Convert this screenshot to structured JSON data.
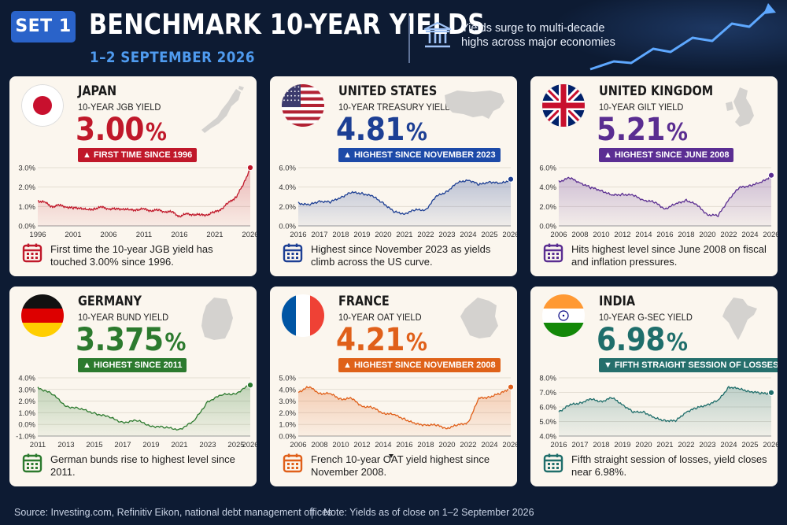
{
  "header": {
    "set_label": "SET 1",
    "title": "BENCHMARK 10-YEAR YIELDS",
    "date": "1–2 SEPTEMBER 2026",
    "tagline": "Yields surge to multi-decade highs across major economies"
  },
  "footer": {
    "source": "Source: Investing.com, Refinitiv Eikon, national debt management offices",
    "note": "Note: Yields as of close on 1–2 September 2026"
  },
  "cards": [
    {
      "country": "JAPAN",
      "metric": "10-YEAR JGB YIELD",
      "value": "3.00",
      "unit": "%",
      "badge": "▲ FIRST TIME SINCE 1996",
      "accent": "#c0182a",
      "badge_color": "#c0182a",
      "note": "First time the 10-year JGB yield has touched 3.00% since 1996."
    },
    {
      "country": "UNITED STATES",
      "metric": "10-YEAR TREASURY YIELD",
      "value": "4.81",
      "unit": "%",
      "badge": "▲ HIGHEST SINCE NOVEMBER 2023",
      "accent": "#1d3f94",
      "badge_color": "#1d4aa8",
      "note": "Highest since November 2023 as yields climb across the US curve."
    },
    {
      "country": "UNITED KINGDOM",
      "metric": "10-YEAR GILT YIELD",
      "value": "5.21",
      "unit": "%",
      "badge": "▲ HIGHEST SINCE JUNE 2008",
      "accent": "#5a2d91",
      "badge_color": "#5b2e93",
      "note": "Hits highest level since June 2008 on fiscal and inflation pressures."
    },
    {
      "country": "GERMANY",
      "metric": "10-YEAR BUND YIELD",
      "value": "3.375",
      "unit": "%",
      "badge": "▲ HIGHEST SINCE 2011",
      "accent": "#2c7a2e",
      "badge_color": "#2c7a2e",
      "note": "German bunds rise to highest level since 2011."
    },
    {
      "country": "FRANCE",
      "metric": "10-YEAR OAT YIELD",
      "value": "4.21",
      "unit": "%",
      "badge": "▲ HIGHEST SINCE NOVEMBER 2008",
      "accent": "#e0601a",
      "badge_color": "#df6219",
      "note": "French 10-year OAT yield highest since November 2008."
    },
    {
      "country": "INDIA",
      "metric": "10-YEAR G-SEC YIELD",
      "value": "6.98",
      "unit": "%",
      "badge": "▼ FIFTH STRAIGHT SESSION OF LOSSES",
      "accent": "#1f6e6b",
      "badge_color": "#256f6c",
      "note": "Fifth straight session of losses, yield closes near 6.98%."
    }
  ],
  "chart_data": [
    {
      "type": "area",
      "series_name": "",
      "color": "#c0182a",
      "ylim": [
        0,
        3
      ],
      "yticks": [
        "0.0%",
        "1.0%",
        "2.0%",
        "3.0%"
      ],
      "ytick_values": [
        0,
        1,
        2,
        3
      ],
      "xlim": [
        1996,
        2026
      ],
      "xticks": [
        "1996",
        "2001",
        "2006",
        "2011",
        "2016",
        "2021",
        "2026"
      ],
      "xtick_values": [
        1996,
        2001,
        2006,
        2011,
        2016,
        2021,
        2026
      ],
      "x": [
        1996,
        1997,
        1998,
        1999,
        2000,
        2001,
        2002,
        2003,
        2004,
        2005,
        2006,
        2007,
        2008,
        2009,
        2010,
        2011,
        2012,
        2013,
        2014,
        2015,
        2016,
        2017,
        2018,
        2019,
        2020,
        2021,
        2022,
        2023,
        2024,
        2025,
        2026
      ],
      "y": [
        1.3,
        1.2,
        1.0,
        1.05,
        1.0,
        0.9,
        0.95,
        0.8,
        0.9,
        0.95,
        0.9,
        0.85,
        0.9,
        0.8,
        0.85,
        0.85,
        0.8,
        0.8,
        0.75,
        0.7,
        0.5,
        0.6,
        0.6,
        0.55,
        0.6,
        0.7,
        0.9,
        1.2,
        1.5,
        2.1,
        3.0
      ]
    },
    {
      "type": "area",
      "series_name": "",
      "color": "#1d3f94",
      "ylim": [
        0,
        6
      ],
      "yticks": [
        "0.0%",
        "2.0%",
        "4.0%",
        "6.0%"
      ],
      "ytick_values": [
        0,
        2,
        4,
        6
      ],
      "xlim": [
        2016,
        2026
      ],
      "xticks": [
        "2016",
        "2017",
        "2018",
        "2019",
        "2020",
        "2021",
        "2022",
        "2023",
        "2024",
        "2025",
        "2026"
      ],
      "xtick_values": [
        2016,
        2017,
        2018,
        2019,
        2020,
        2021,
        2022,
        2023,
        2024,
        2025,
        2026
      ],
      "x": [
        2016,
        2016.5,
        2017,
        2017.5,
        2018,
        2018.5,
        2019,
        2019.5,
        2020,
        2020.5,
        2021,
        2021.5,
        2022,
        2022.5,
        2023,
        2023.5,
        2024,
        2024.5,
        2025,
        2025.5,
        2026
      ],
      "y": [
        2.4,
        2.1,
        2.6,
        2.4,
        3.0,
        3.4,
        3.4,
        3.0,
        2.4,
        1.4,
        1.3,
        1.6,
        1.7,
        3.0,
        3.6,
        4.4,
        4.8,
        4.2,
        4.6,
        4.3,
        4.81
      ]
    },
    {
      "type": "area",
      "series_name": "",
      "color": "#5a2d91",
      "ylim": [
        0,
        6
      ],
      "yticks": [
        "0.0%",
        "2.0%",
        "4.0%",
        "6.0%"
      ],
      "ytick_values": [
        0,
        2,
        4,
        6
      ],
      "xlim": [
        2006,
        2026
      ],
      "xticks": [
        "2006",
        "2008",
        "2010",
        "2012",
        "2014",
        "2016",
        "2018",
        "2020",
        "2022",
        "2024",
        "2026"
      ],
      "xtick_values": [
        2006,
        2008,
        2010,
        2012,
        2014,
        2016,
        2018,
        2020,
        2022,
        2024,
        2026
      ],
      "x": [
        2006,
        2007,
        2008,
        2009,
        2010,
        2011,
        2012,
        2013,
        2014,
        2015,
        2016,
        2017,
        2018,
        2019,
        2020,
        2021,
        2022,
        2023,
        2024,
        2025,
        2026
      ],
      "y": [
        4.6,
        4.9,
        4.5,
        3.9,
        3.7,
        3.1,
        3.3,
        3.1,
        2.7,
        2.4,
        1.8,
        2.2,
        2.7,
        2.1,
        1.2,
        1.0,
        2.8,
        3.9,
        4.2,
        4.4,
        5.21
      ]
    },
    {
      "type": "area",
      "series_name": "",
      "color": "#2c7a2e",
      "ylim": [
        -1,
        4
      ],
      "yticks": [
        "-1.0%",
        "0.0%",
        "1.0%",
        "2.0%",
        "3.0%",
        "4.0%"
      ],
      "ytick_values": [
        -1,
        0,
        1,
        2,
        3,
        4
      ],
      "xlim": [
        2011,
        2026
      ],
      "xticks": [
        "2011",
        "2013",
        "2015",
        "2017",
        "2019",
        "2021",
        "2023",
        "2025",
        "2026"
      ],
      "xtick_values": [
        2011,
        2013,
        2015,
        2017,
        2019,
        2021,
        2023,
        2025,
        2026
      ],
      "x": [
        2011,
        2012,
        2013,
        2014,
        2015,
        2016,
        2017,
        2018,
        2019,
        2020,
        2021,
        2022,
        2023,
        2024,
        2025,
        2026
      ],
      "y": [
        3.2,
        2.6,
        1.6,
        1.3,
        1.0,
        0.6,
        0.2,
        0.3,
        -0.1,
        -0.3,
        -0.4,
        0.2,
        2.0,
        2.5,
        2.7,
        3.375
      ]
    },
    {
      "type": "area",
      "series_name": "",
      "color": "#e0601a",
      "ylim": [
        0,
        5
      ],
      "yticks": [
        "0.0%",
        "1.0%",
        "2.0%",
        "3.0%",
        "4.0%",
        "5.0%"
      ],
      "ytick_values": [
        0,
        1,
        2,
        3,
        4,
        5
      ],
      "xlim": [
        2006,
        2026
      ],
      "xticks": [
        "2006",
        "2008",
        "2010",
        "2012",
        "2014",
        "2016",
        "2018",
        "2020",
        "2022",
        "2024",
        "2026"
      ],
      "xtick_values": [
        2006,
        2008,
        2010,
        2012,
        2014,
        2016,
        2018,
        2020,
        2022,
        2024,
        2026
      ],
      "x": [
        2006,
        2007,
        2008,
        2009,
        2010,
        2011,
        2012,
        2013,
        2014,
        2015,
        2016,
        2017,
        2018,
        2019,
        2020,
        2021,
        2022,
        2023,
        2024,
        2025,
        2026
      ],
      "y": [
        3.8,
        4.2,
        3.7,
        3.6,
        3.2,
        3.2,
        2.6,
        2.4,
        2.0,
        1.8,
        1.5,
        1.0,
        1.0,
        0.9,
        0.7,
        0.9,
        1.2,
        3.2,
        3.4,
        3.6,
        4.21
      ]
    },
    {
      "type": "area",
      "series_name": "",
      "color": "#1f6e6b",
      "ylim": [
        4,
        8
      ],
      "yticks": [
        "4.0%",
        "5.0%",
        "6.0%",
        "7.0%",
        "8.0%"
      ],
      "ytick_values": [
        4,
        5,
        6,
        7,
        8
      ],
      "xlim": [
        2016,
        2026
      ],
      "xticks": [
        "2016",
        "2017",
        "2018",
        "2019",
        "2020",
        "2021",
        "2022",
        "2023",
        "2024",
        "2025",
        "2026"
      ],
      "xtick_values": [
        2016,
        2017,
        2018,
        2019,
        2020,
        2021,
        2022,
        2023,
        2024,
        2025,
        2026
      ],
      "x": [
        2016,
        2016.5,
        2017,
        2017.5,
        2018,
        2018.5,
        2019,
        2019.5,
        2020,
        2020.5,
        2021,
        2021.5,
        2022,
        2022.5,
        2023,
        2023.5,
        2024,
        2024.5,
        2025,
        2025.5,
        2026
      ],
      "y": [
        5.7,
        6.1,
        6.3,
        6.5,
        6.4,
        6.6,
        6.2,
        5.6,
        5.7,
        5.2,
        5.1,
        5.0,
        5.7,
        5.9,
        6.2,
        6.4,
        7.4,
        7.2,
        7.1,
        6.9,
        6.98
      ]
    }
  ]
}
